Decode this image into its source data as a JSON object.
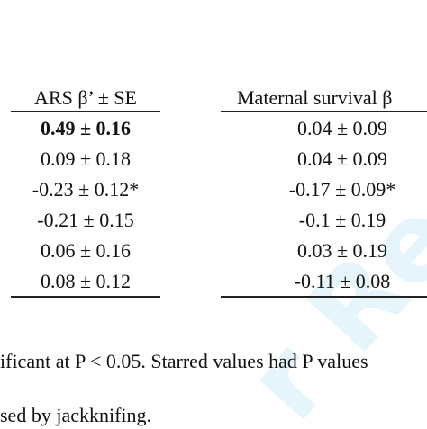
{
  "table": {
    "header_left": "ARS β’ ± SE",
    "header_right": "Maternal survival  β",
    "rows": [
      {
        "left": "0.49 ± 0.16",
        "right": "0.04 ± 0.09",
        "bold_left": true
      },
      {
        "left": "0.09 ± 0.18",
        "right": "0.04 ± 0.09"
      },
      {
        "left": "-0.23 ± 0.12*",
        "right": "-0.17 ± 0.09*"
      },
      {
        "left": "-0.21 ± 0.15",
        "right": "-0.1 ± 0.19"
      },
      {
        "left": "0.06 ± 0.16",
        "right": "0.03 ± 0.19"
      },
      {
        "left": "0.08 ± 0.12",
        "right": "-0.11 ± 0.08"
      }
    ]
  },
  "notes": {
    "line1": "ificant at P < 0.05. Starred values had P values",
    "line2": "sed by jackknifing."
  },
  "colors": {
    "watermark": "#3fa9e6",
    "rule": "#222222"
  }
}
